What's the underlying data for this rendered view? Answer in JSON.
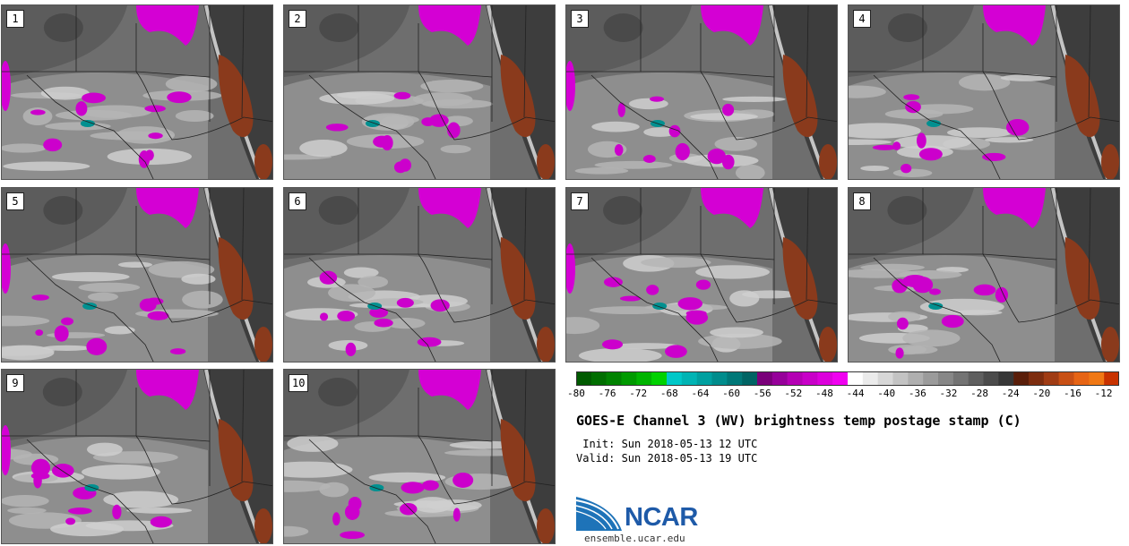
{
  "panels": [
    {
      "label": "1"
    },
    {
      "label": "2"
    },
    {
      "label": "3"
    },
    {
      "label": "4"
    },
    {
      "label": "5"
    },
    {
      "label": "6"
    },
    {
      "label": "7"
    },
    {
      "label": "8"
    },
    {
      "label": "9"
    },
    {
      "label": "10"
    }
  ],
  "colorbar": {
    "min": -80,
    "max": -10,
    "step": 2,
    "ticks": [
      "-80",
      "-76",
      "-72",
      "-68",
      "-64",
      "-60",
      "-56",
      "-52",
      "-48",
      "-44",
      "-40",
      "-36",
      "-32",
      "-28",
      "-24",
      "-20",
      "-16",
      "-12"
    ],
    "colors": [
      "#005a00",
      "#006e00",
      "#008200",
      "#009a00",
      "#00b400",
      "#00d200",
      "#00c8c8",
      "#00b4b4",
      "#00a0a0",
      "#008c8c",
      "#007878",
      "#006464",
      "#7a007a",
      "#96009a",
      "#b400b4",
      "#c800c8",
      "#dc00dc",
      "#f000f0",
      "#ffffff",
      "#ebebeb",
      "#d7d7d7",
      "#c3c3c3",
      "#afafaf",
      "#9b9b9b",
      "#878787",
      "#737373",
      "#5f5f5f",
      "#4b4b4b",
      "#373737",
      "#5a1e0a",
      "#7d2d0f",
      "#a03c14",
      "#c85014",
      "#e66414",
      "#f07814",
      "#c83200"
    ]
  },
  "title": "GOES-E Channel 3 (WV) brightness temp postage stamp (C)",
  "init": " Init: Sun 2018-05-13 12 UTC",
  "valid": "Valid: Sun 2018-05-13 19 UTC",
  "logo": {
    "text": "NCAR",
    "url": "ensemble.ucar.edu"
  }
}
